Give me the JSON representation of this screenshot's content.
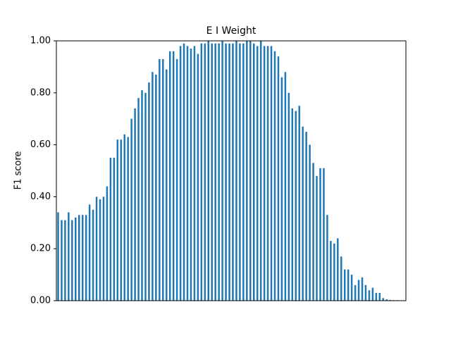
{
  "chart_data": {
    "type": "bar",
    "title": "E I Weight",
    "ylabel": "F1 score",
    "categories": [
      null,
      null,
      null,
      null,
      null,
      null,
      null,
      null,
      null,
      null,
      null,
      null,
      null,
      null,
      null,
      null,
      null,
      null,
      null,
      null,
      null,
      null,
      null,
      null,
      null,
      null,
      null,
      null,
      null,
      null,
      null,
      null,
      null,
      null,
      null,
      null,
      null,
      null,
      null,
      null,
      null,
      null,
      null,
      null,
      null,
      null,
      null,
      null,
      null,
      null,
      null,
      null,
      null,
      null,
      null,
      null,
      null,
      null,
      null,
      null,
      null,
      null,
      null,
      null,
      null,
      null,
      null,
      null,
      null,
      null,
      null,
      null,
      null,
      null,
      null,
      null,
      null,
      null,
      null,
      null,
      null,
      null,
      null,
      null,
      null,
      null,
      null,
      null,
      null,
      null,
      null,
      null,
      null,
      null,
      null,
      null,
      null,
      null,
      null,
      null
    ],
    "values": [
      0.34,
      0.31,
      0.31,
      0.34,
      0.31,
      0.32,
      0.33,
      0.33,
      0.33,
      0.37,
      0.35,
      0.4,
      0.39,
      0.4,
      0.44,
      0.55,
      0.55,
      0.62,
      0.62,
      0.64,
      0.63,
      0.7,
      0.74,
      0.78,
      0.81,
      0.8,
      0.84,
      0.88,
      0.87,
      0.93,
      0.93,
      0.89,
      0.96,
      0.96,
      0.93,
      0.98,
      0.99,
      0.98,
      0.97,
      0.98,
      0.95,
      0.99,
      0.99,
      1.0,
      0.99,
      0.99,
      0.99,
      1.0,
      0.99,
      0.99,
      0.99,
      1.0,
      0.99,
      0.99,
      1.0,
      1.0,
      0.99,
      0.98,
      1.0,
      0.98,
      0.98,
      0.98,
      0.96,
      0.94,
      0.86,
      0.88,
      0.8,
      0.74,
      0.73,
      0.75,
      0.67,
      0.65,
      0.6,
      0.53,
      0.48,
      0.51,
      0.51,
      0.33,
      0.23,
      0.22,
      0.24,
      0.17,
      0.12,
      0.12,
      0.1,
      0.06,
      0.08,
      0.09,
      0.06,
      0.04,
      0.05,
      0.03,
      0.03,
      0.01,
      0.005,
      0.003,
      0.002,
      0.002,
      0.001,
      0.001
    ],
    "color": "#1f77b4",
    "ylim": [
      0,
      1
    ],
    "yticks": [
      {
        "value": 0,
        "label": "0.00"
      },
      {
        "value": 0.2,
        "label": "0.20"
      },
      {
        "value": 0.4,
        "label": "0.40"
      },
      {
        "value": 0.6,
        "label": "0.60"
      },
      {
        "value": 0.8,
        "label": "0.80"
      },
      {
        "value": 1,
        "label": "1.00"
      }
    ],
    "grid": false
  }
}
